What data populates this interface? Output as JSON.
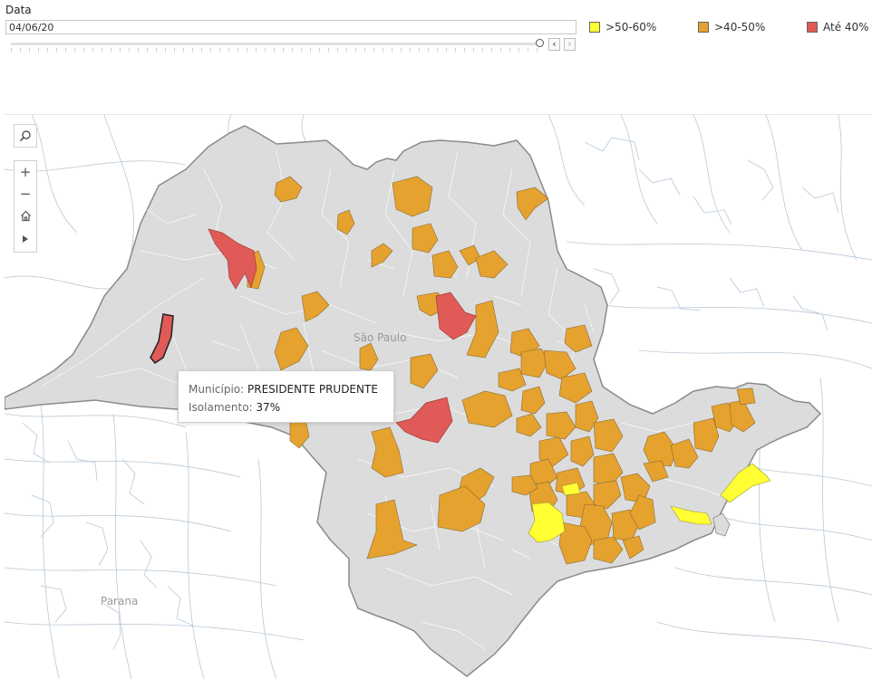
{
  "filter": {
    "label": "Data",
    "value": "04/06/20",
    "prev_icon": "chevron-left-icon",
    "next_icon": "chevron-right-icon"
  },
  "legend": [
    {
      "label": ">50-60%",
      "color": "#ffff33"
    },
    {
      "label": ">40-50%",
      "color": "#e5a22f"
    },
    {
      "label": "Até 40%",
      "color": "#e05a57"
    }
  ],
  "map": {
    "state_label": "São Paulo",
    "neighbor_label": "Parana",
    "colors": {
      "state_fill": "#dcdcdc",
      "border": "#8a8a8a",
      "background_lines": "#b8c8d6",
      "orange": "#e5a22f",
      "red": "#e05a57",
      "yellow": "#ffff33"
    }
  },
  "tools": {
    "search_icon": "magnifier-icon",
    "zoom_in": "+",
    "zoom_out": "−",
    "home_icon": "home-icon",
    "play_icon": "play-icon"
  },
  "tooltip": {
    "municipio_label": "Município:",
    "municipio_value": "PRESIDENTE PRUDENTE",
    "isolamento_label": "Isolamento:",
    "isolamento_value": "37%"
  }
}
